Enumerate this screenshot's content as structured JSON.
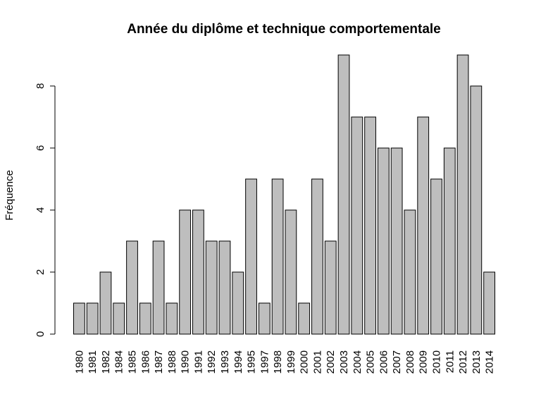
{
  "chart_data": {
    "type": "bar",
    "title": "Année du diplôme et technique comportementale",
    "xlabel": "",
    "ylabel": "Fréquence",
    "categories": [
      "1980",
      "1981",
      "1982",
      "1984",
      "1985",
      "1986",
      "1987",
      "1988",
      "1990",
      "1991",
      "1992",
      "1993",
      "1994",
      "1995",
      "1997",
      "1998",
      "1999",
      "2000",
      "2001",
      "2002",
      "2003",
      "2004",
      "2005",
      "2006",
      "2007",
      "2008",
      "2009",
      "2010",
      "2011",
      "2012",
      "2013",
      "2014"
    ],
    "values": [
      1,
      1,
      2,
      1,
      3,
      1,
      3,
      1,
      4,
      4,
      3,
      3,
      2,
      5,
      1,
      5,
      4,
      1,
      5,
      3,
      9,
      7,
      7,
      6,
      6,
      4,
      7,
      5,
      6,
      9,
      8,
      2
    ],
    "ylim": [
      0,
      9
    ],
    "yticks": [
      0,
      2,
      4,
      6,
      8
    ],
    "bar_color": "#bebebe",
    "grid": false,
    "legend": "none"
  }
}
